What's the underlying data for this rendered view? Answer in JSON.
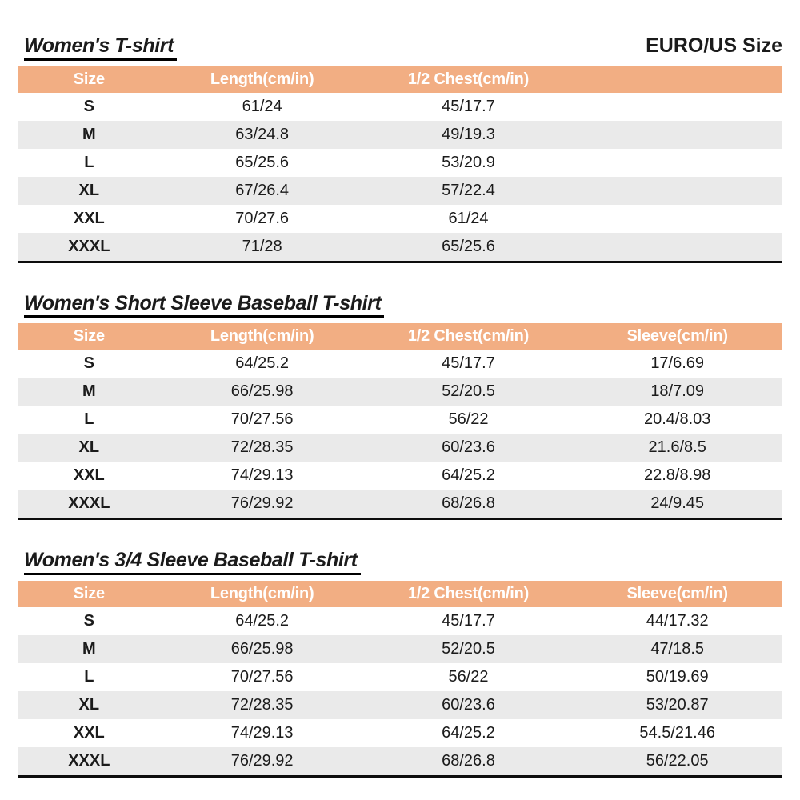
{
  "page": {
    "size_standard_label": "EURO/US Size"
  },
  "colors": {
    "header_bg": "#F2AE83",
    "header_text": "#FFFFFF",
    "stripe_bg": "#EAEAEA",
    "table_border": "#0D0D0D",
    "text": "#1B1B1B"
  },
  "tables": [
    {
      "title": "Women's T-shirt",
      "headers": [
        "Size",
        "Length(cm/in)",
        "1/2 Chest(cm/in)",
        ""
      ],
      "rows": [
        [
          "S",
          "61/24",
          "45/17.7",
          ""
        ],
        [
          "M",
          "63/24.8",
          "49/19.3",
          ""
        ],
        [
          "L",
          "65/25.6",
          "53/20.9",
          ""
        ],
        [
          "XL",
          "67/26.4",
          "57/22.4",
          ""
        ],
        [
          "XXL",
          "70/27.6",
          "61/24",
          ""
        ],
        [
          "XXXL",
          "71/28",
          "65/25.6",
          ""
        ]
      ]
    },
    {
      "title": "Women's Short Sleeve Baseball T-shirt",
      "headers": [
        "Size",
        "Length(cm/in)",
        "1/2 Chest(cm/in)",
        "Sleeve(cm/in)"
      ],
      "rows": [
        [
          "S",
          "64/25.2",
          "45/17.7",
          "17/6.69"
        ],
        [
          "M",
          "66/25.98",
          "52/20.5",
          "18/7.09"
        ],
        [
          "L",
          "70/27.56",
          "56/22",
          "20.4/8.03"
        ],
        [
          "XL",
          "72/28.35",
          "60/23.6",
          "21.6/8.5"
        ],
        [
          "XXL",
          "74/29.13",
          "64/25.2",
          "22.8/8.98"
        ],
        [
          "XXXL",
          "76/29.92",
          "68/26.8",
          "24/9.45"
        ]
      ]
    },
    {
      "title": "Women's 3/4 Sleeve Baseball T-shirt",
      "headers": [
        "Size",
        "Length(cm/in)",
        "1/2 Chest(cm/in)",
        "Sleeve(cm/in)"
      ],
      "rows": [
        [
          "S",
          "64/25.2",
          "45/17.7",
          "44/17.32"
        ],
        [
          "M",
          "66/25.98",
          "52/20.5",
          "47/18.5"
        ],
        [
          "L",
          "70/27.56",
          "56/22",
          "50/19.69"
        ],
        [
          "XL",
          "72/28.35",
          "60/23.6",
          "53/20.87"
        ],
        [
          "XXL",
          "74/29.13",
          "64/25.2",
          "54.5/21.46"
        ],
        [
          "XXXL",
          "76/29.92",
          "68/26.8",
          "56/22.05"
        ]
      ]
    }
  ]
}
